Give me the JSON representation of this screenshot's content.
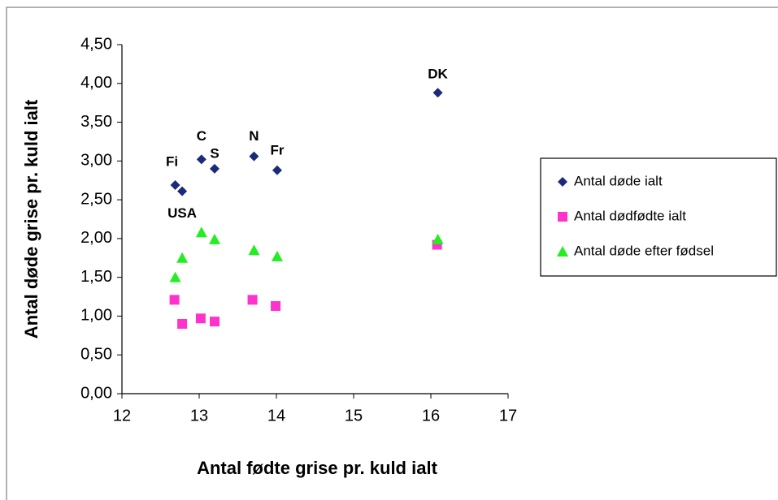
{
  "chart_data": {
    "type": "scatter",
    "x_label": "Antal fødte grise pr. kuld ialt",
    "y_label": "Antal døde grise pr. kuld ialt",
    "xlim": [
      12,
      17
    ],
    "xticks": [
      12,
      13,
      14,
      15,
      16,
      17
    ],
    "ylim": [
      0,
      4.5
    ],
    "yticks": [
      {
        "value": 0,
        "label": "0,00"
      },
      {
        "value": 0.5,
        "label": "0,50"
      },
      {
        "value": 1,
        "label": "1,00"
      },
      {
        "value": 1.5,
        "label": "1,50"
      },
      {
        "value": 2,
        "label": "2,00"
      },
      {
        "value": 2.5,
        "label": "2,50"
      },
      {
        "value": 3,
        "label": "3,00"
      },
      {
        "value": 3.5,
        "label": "3,50"
      },
      {
        "value": 4,
        "label": "4,00"
      },
      {
        "value": 4.5,
        "label": "4,50"
      }
    ],
    "legend": "right",
    "series": [
      {
        "name": "Antal døde ialt",
        "color": "#1c2a7a",
        "marker": "diamond",
        "x": [
          12.69,
          12.78,
          13.03,
          13.2,
          13.71,
          14.01,
          16.09
        ],
        "values": [
          2.69,
          2.61,
          3.02,
          2.9,
          3.06,
          2.88,
          3.88
        ],
        "point_labels": [
          "Fi",
          "USA",
          "C",
          "S",
          "N",
          "Fr",
          "DK"
        ]
      },
      {
        "name": "Antal dødfødte ialt",
        "color": "#ff33cc",
        "marker": "square",
        "x": [
          12.68,
          12.78,
          13.02,
          13.2,
          13.69,
          13.99,
          16.08
        ],
        "values": [
          1.21,
          0.9,
          0.97,
          0.93,
          1.21,
          1.13,
          1.92
        ]
      },
      {
        "name": "Antal døde efter fødsel",
        "color": "#22ee22",
        "marker": "triangle",
        "x": [
          12.69,
          12.78,
          13.03,
          13.2,
          13.71,
          14.01,
          16.09
        ],
        "values": [
          1.5,
          1.75,
          2.08,
          1.99,
          1.85,
          1.77,
          1.99
        ]
      }
    ]
  }
}
